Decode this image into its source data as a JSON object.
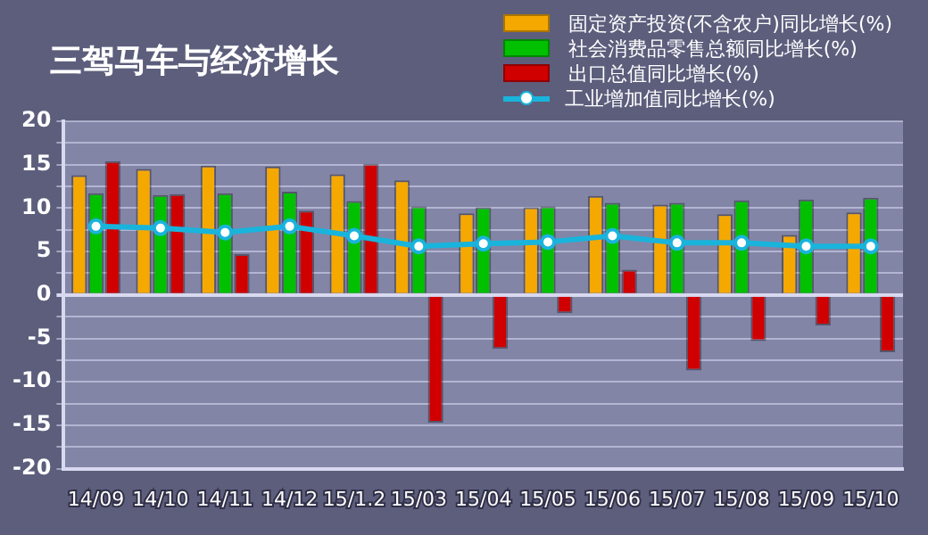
{
  "chart_data": {
    "type": "bar",
    "title": "三驾马车与经济增长",
    "categories": [
      "14/09",
      "14/10",
      "14/11",
      "14/12",
      "15/1.2",
      "15/03",
      "15/04",
      "15/05",
      "15/06",
      "15/07",
      "15/08",
      "15/09",
      "15/10"
    ],
    "series": [
      {
        "name": "固定资产投资(不含农户)同比增长(%)",
        "color": "#f5a800",
        "values": [
          13.8,
          14.5,
          14.9,
          14.8,
          13.9,
          13.2,
          9.4,
          10.1,
          11.4,
          10.4,
          9.3,
          6.9,
          9.5
        ]
      },
      {
        "name": "社会消费品零售总额同比增长(%)",
        "color": "#00c000",
        "values": [
          11.7,
          11.5,
          11.7,
          11.9,
          10.8,
          10.2,
          10.1,
          10.2,
          10.6,
          10.6,
          10.9,
          11.0,
          11.2
        ]
      },
      {
        "name": "出口总值同比增长(%)",
        "color": "#d00000",
        "values": [
          15.4,
          11.6,
          4.7,
          9.7,
          15.1,
          -14.7,
          -6.2,
          -2.1,
          2.9,
          -8.7,
          -5.3,
          -3.5,
          -6.6
        ]
      },
      {
        "name": "工业增加值同比增长(%)",
        "type": "line",
        "color": "#19b4dc",
        "values": [
          7.9,
          7.7,
          7.2,
          7.9,
          6.8,
          5.6,
          5.9,
          6.1,
          6.8,
          6.0,
          6.0,
          5.6,
          5.6
        ]
      }
    ],
    "ylim": [
      -20,
      20
    ],
    "yticks": [
      -20,
      {
        "value": -17.5,
        "label": null
      },
      -15,
      {
        "value": -12.5,
        "label": null
      },
      -10,
      {
        "value": -7.5,
        "label": null
      },
      -5,
      {
        "value": -2.5,
        "label": null
      },
      0,
      {
        "value": 2.5,
        "label": null
      },
      5,
      {
        "value": 7.5,
        "label": null
      },
      10,
      {
        "value": 12.5,
        "label": null
      },
      15,
      {
        "value": 17.5,
        "label": null
      },
      20
    ],
    "grid": "y",
    "legend": "top right",
    "marker": "circle"
  }
}
